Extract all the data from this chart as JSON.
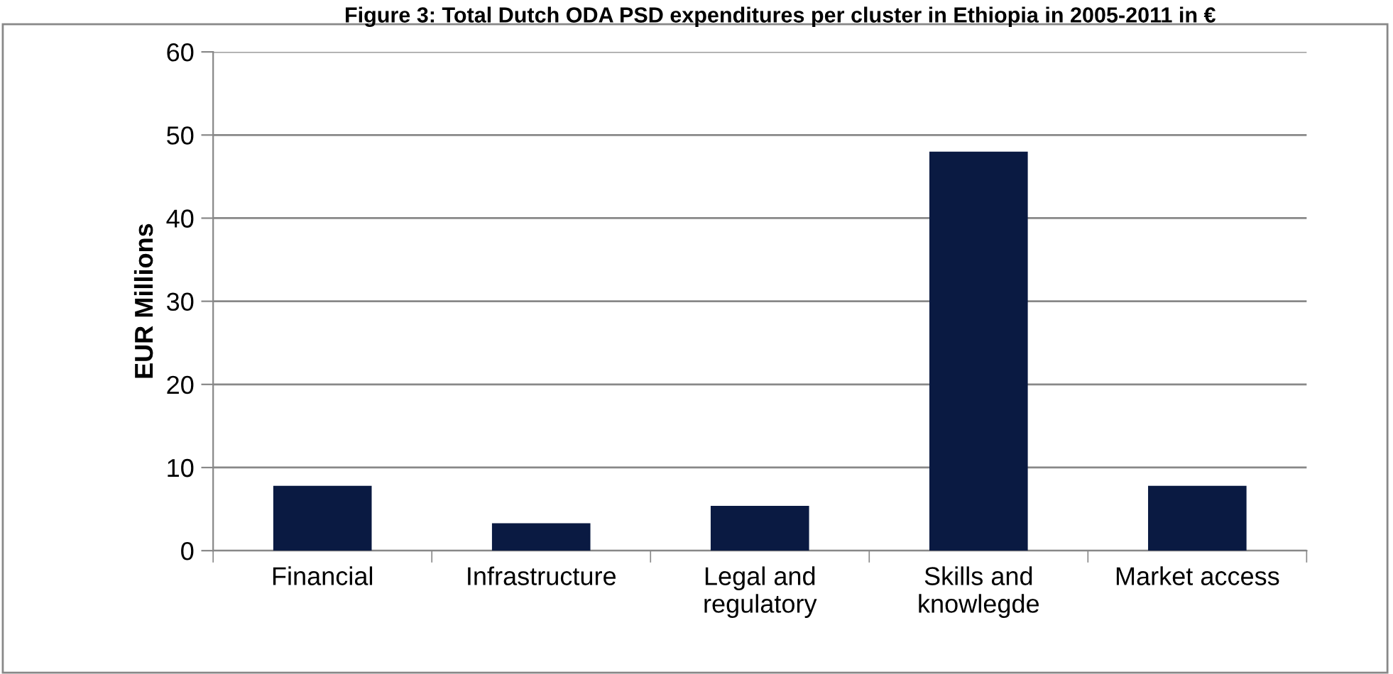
{
  "chart_data": {
    "type": "bar",
    "title": "Figure 3: Total Dutch ODA PSD expenditures per cluster in Ethiopia in 2005-2011 in €",
    "ylabel": "EUR Millions",
    "categories": [
      "Financial",
      "Infrastructure",
      "Legal and\nregulatory",
      "Skills and\nknowlegde",
      "Market access"
    ],
    "values": [
      7.8,
      3.3,
      5.4,
      48,
      7.8
    ],
    "color": "#0a1a42",
    "ylim": [
      0,
      60
    ],
    "yticks": [
      0,
      10,
      20,
      30,
      40,
      50,
      60
    ],
    "grid": "y",
    "legend": false
  }
}
